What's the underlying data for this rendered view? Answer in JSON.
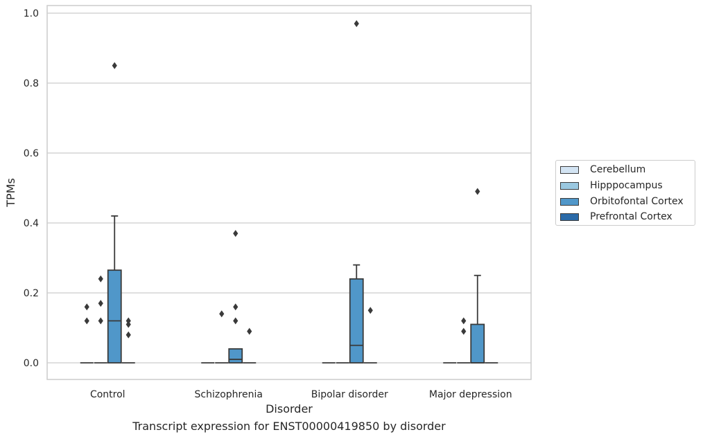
{
  "chart_data": {
    "type": "box",
    "title": "",
    "caption": "Transcript expression for ENST00000419850 by disorder",
    "xlabel": "Disorder",
    "ylabel": "TPMs",
    "ylim": [
      -0.048,
      1.02
    ],
    "yticks": [
      0.0,
      0.2,
      0.4,
      0.6,
      0.8,
      1.0
    ],
    "ytick_labels": [
      "0.0",
      "0.2",
      "0.4",
      "0.6",
      "0.8",
      "1.0"
    ],
    "grid": true,
    "legend_position": "right",
    "categories": [
      "Control",
      "Schizophrenia",
      "Bipolar disorder",
      "Major depression"
    ],
    "series": [
      {
        "name": "Cerebellum",
        "color": "#d3e4f3",
        "boxes": [
          {
            "q1": 0,
            "median": 0,
            "q3": 0,
            "whisker_low": 0,
            "whisker_high": 0,
            "outliers": [
              0.12,
              0.16
            ]
          },
          {
            "q1": 0,
            "median": 0,
            "q3": 0,
            "whisker_low": 0,
            "whisker_high": 0,
            "outliers": []
          },
          {
            "q1": 0,
            "median": 0,
            "q3": 0,
            "whisker_low": 0,
            "whisker_high": 0,
            "outliers": []
          },
          {
            "q1": 0,
            "median": 0,
            "q3": 0,
            "whisker_low": 0,
            "whisker_high": 0,
            "outliers": []
          }
        ]
      },
      {
        "name": "Hipppocampus",
        "color": "#9ac8e0",
        "boxes": [
          {
            "q1": 0,
            "median": 0,
            "q3": 0,
            "whisker_low": 0,
            "whisker_high": 0,
            "outliers": [
              0.12,
              0.17,
              0.24
            ]
          },
          {
            "q1": 0,
            "median": 0,
            "q3": 0,
            "whisker_low": 0,
            "whisker_high": 0,
            "outliers": [
              0.14
            ]
          },
          {
            "q1": 0,
            "median": 0,
            "q3": 0,
            "whisker_low": 0,
            "whisker_high": 0,
            "outliers": []
          },
          {
            "q1": 0,
            "median": 0,
            "q3": 0,
            "whisker_low": 0,
            "whisker_high": 0,
            "outliers": [
              0.09,
              0.12
            ]
          }
        ]
      },
      {
        "name": "Orbitofontal Cortex",
        "color": "#5097c9",
        "boxes": [
          {
            "q1": 0,
            "median": 0.12,
            "q3": 0.265,
            "whisker_low": 0,
            "whisker_high": 0.42,
            "outliers": [
              0.85
            ]
          },
          {
            "q1": 0,
            "median": 0.01,
            "q3": 0.04,
            "whisker_low": 0,
            "whisker_high": 0.04,
            "outliers": [
              0.12,
              0.16,
              0.37
            ]
          },
          {
            "q1": 0,
            "median": 0.05,
            "q3": 0.24,
            "whisker_low": 0,
            "whisker_high": 0.28,
            "outliers": [
              0.97
            ]
          },
          {
            "q1": 0,
            "median": 0,
            "q3": 0.11,
            "whisker_low": 0,
            "whisker_high": 0.25,
            "outliers": [
              0.49
            ]
          }
        ]
      },
      {
        "name": "Prefrontal Cortex",
        "color": "#2a6aa8",
        "boxes": [
          {
            "q1": 0,
            "median": 0,
            "q3": 0,
            "whisker_low": 0,
            "whisker_high": 0,
            "outliers": [
              0.08,
              0.11,
              0.12
            ]
          },
          {
            "q1": 0,
            "median": 0,
            "q3": 0,
            "whisker_low": 0,
            "whisker_high": 0,
            "outliers": [
              0.09
            ]
          },
          {
            "q1": 0,
            "median": 0,
            "q3": 0,
            "whisker_low": 0,
            "whisker_high": 0,
            "outliers": [
              0.15
            ]
          },
          {
            "q1": 0,
            "median": 0,
            "q3": 0,
            "whisker_low": 0,
            "whisker_high": 0,
            "outliers": []
          }
        ]
      }
    ]
  }
}
